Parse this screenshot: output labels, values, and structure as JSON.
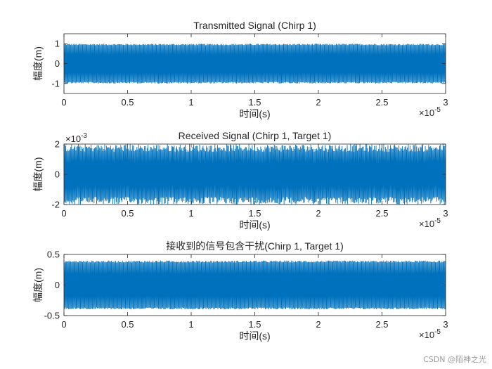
{
  "chart_data": [
    {
      "type": "line",
      "title": "Transmitted Signal (Chirp 1)",
      "xlabel": "时间(s)",
      "ylabel": "幅度(m)",
      "x_exponent": "×10",
      "x_exponent_power": "-5",
      "xlim": [
        0,
        3e-05
      ],
      "ylim": [
        -1.5,
        1.5
      ],
      "x_ticks": [
        0,
        5e-06,
        1e-05,
        1.5e-05,
        2e-05,
        2.5e-05,
        3e-05
      ],
      "x_tick_labels": [
        "0",
        "0.5",
        "1",
        "1.5",
        "2",
        "2.5",
        "3"
      ],
      "y_ticks": [
        -1,
        0,
        1
      ],
      "y_tick_labels": [
        "-1",
        "0",
        "1"
      ],
      "series": [
        {
          "color": "#0072BD",
          "envelope": [
            -1,
            1
          ]
        }
      ]
    },
    {
      "type": "line",
      "title": "Received Signal (Chirp 1, Target 1)",
      "xlabel": "时间(s)",
      "ylabel": "幅度(m)",
      "x_exponent": "×10",
      "x_exponent_power": "-5",
      "y_exponent": "×10",
      "y_exponent_power": "-3",
      "xlim": [
        0,
        3e-05
      ],
      "ylim": [
        -0.002,
        0.002
      ],
      "x_ticks": [
        0,
        5e-06,
        1e-05,
        1.5e-05,
        2e-05,
        2.5e-05,
        3e-05
      ],
      "x_tick_labels": [
        "0",
        "0.5",
        "1",
        "1.5",
        "2",
        "2.5",
        "3"
      ],
      "y_ticks": [
        -0.002,
        0,
        0.002
      ],
      "y_tick_labels": [
        "-2",
        "0",
        "2"
      ],
      "series": [
        {
          "color": "#0072BD",
          "envelope": [
            -0.002,
            0.002
          ]
        }
      ]
    },
    {
      "type": "line",
      "title": "接收到的信号包含干扰(Chirp 1, Target 1)",
      "xlabel": "时间(s)",
      "ylabel": "幅度(m)",
      "x_exponent": "×10",
      "x_exponent_power": "-5",
      "xlim": [
        0,
        3e-05
      ],
      "ylim": [
        -0.5,
        0.5
      ],
      "x_ticks": [
        0,
        5e-06,
        1e-05,
        1.5e-05,
        2e-05,
        2.5e-05,
        3e-05
      ],
      "x_tick_labels": [
        "0",
        "0.5",
        "1",
        "1.5",
        "2",
        "2.5",
        "3"
      ],
      "y_ticks": [
        -0.5,
        0,
        0.5
      ],
      "y_tick_labels": [
        "-0.5",
        "0",
        "0.5"
      ],
      "series": [
        {
          "color": "#0072BD",
          "envelope": [
            -0.4,
            0.4
          ]
        }
      ]
    }
  ],
  "watermark": "CSDN @陌神之光"
}
